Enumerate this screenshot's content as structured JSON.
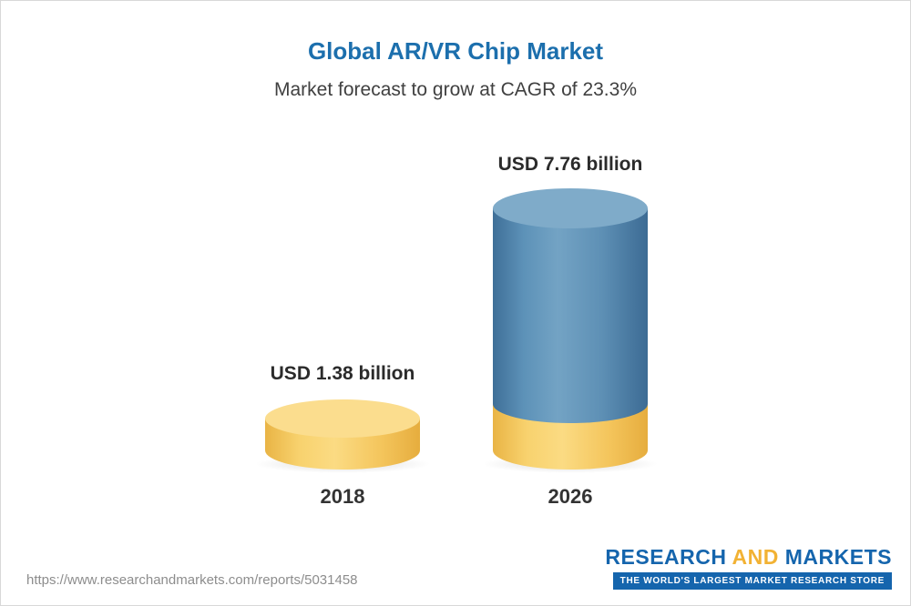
{
  "header": {
    "title": "Global AR/VR Chip Market",
    "subtitle": "Market forecast to grow at CAGR of 23.3%"
  },
  "chart_data": {
    "type": "bar",
    "title": "Global AR/VR Chip Market",
    "subtitle": "Market forecast to grow at CAGR of 23.3%",
    "categories": [
      "2018",
      "2026"
    ],
    "values": [
      1.38,
      7.76
    ],
    "unit": "USD billion",
    "value_labels": [
      "USD 1.38 billion",
      "USD 7.76 billion"
    ],
    "cagr_percent": 23.3,
    "legend": false,
    "grid": false,
    "colors": {
      "bar_2018": "#f6c95f",
      "bar_2026": "#4e81a9",
      "bar_2026_base": "#f6c95f",
      "title_text": "#1c6fad"
    }
  },
  "footer": {
    "url": "https://www.researchandmarkets.com/reports/5031458",
    "logo": {
      "part1": "RESEARCH",
      "part2": "AND",
      "part3": "MARKETS",
      "tagline": "THE WORLD'S LARGEST MARKET RESEARCH STORE"
    }
  }
}
